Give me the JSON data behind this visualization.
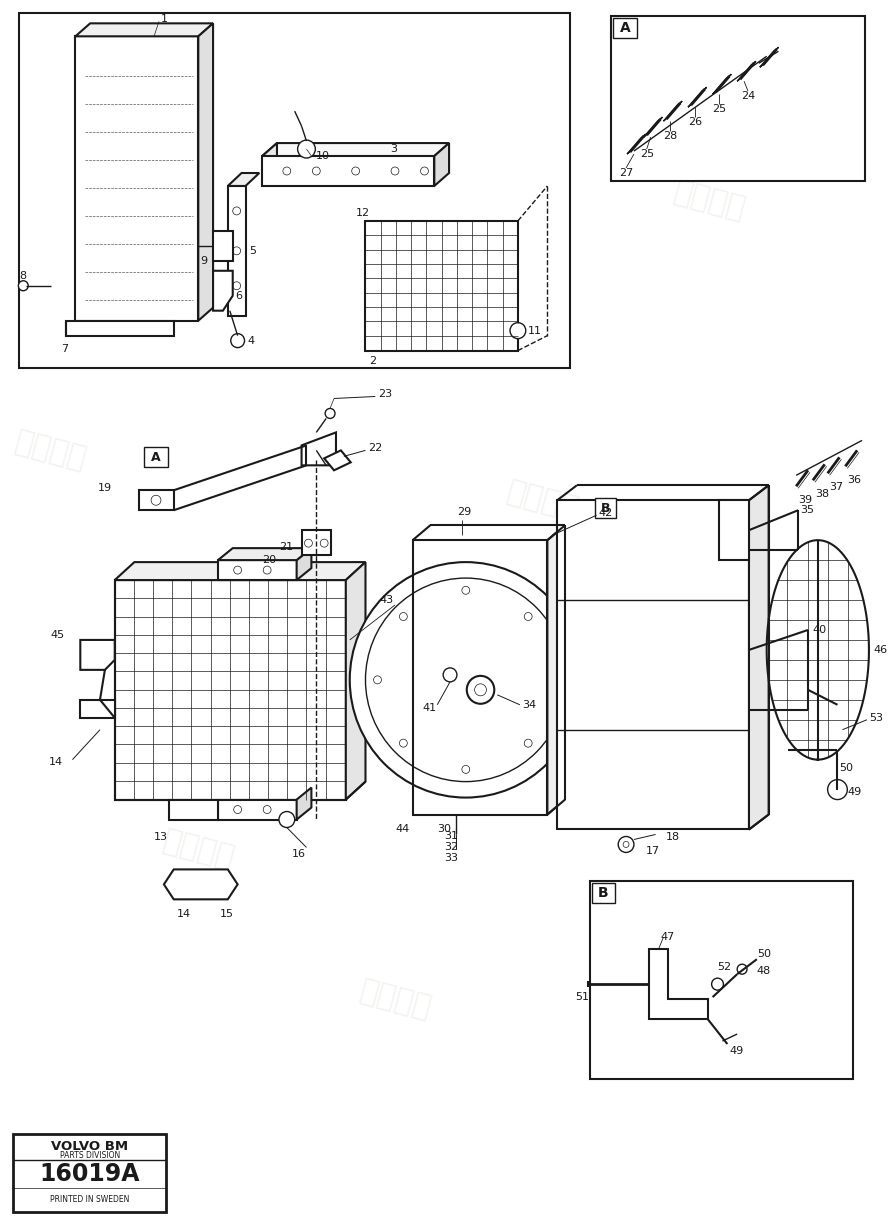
{
  "bg_color": "#ffffff",
  "line_color": "#1a1a1a",
  "light_line": "#555555",
  "part_number": "16019A",
  "company": "VOLVO BM",
  "division": "PARTS DIVISION",
  "printed": "PRINTED IN SWEDEN"
}
